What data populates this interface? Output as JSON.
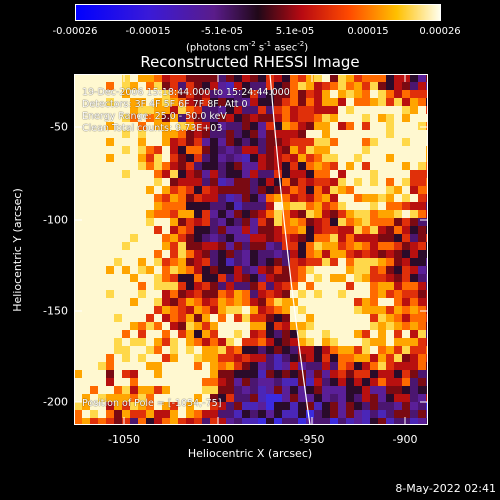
{
  "colorbar": {
    "ticks": [
      "-0.00026",
      "-0.00015",
      "-5.1e-05",
      "5.1e-05",
      "0.00015",
      "0.00026"
    ],
    "units_prefix": "(photons cm",
    "units_exp1": "-2",
    "units_mid": " s",
    "units_exp2": "-1",
    "units_suffix": " asec",
    "units_exp3": "-2",
    "units_end": ")"
  },
  "chart_data": {
    "type": "heatmap",
    "title": "Reconstructed RHESSI Image",
    "xlabel": "Heliocentric X (arcsec)",
    "ylabel": "Heliocentric Y (arcsec)",
    "xticks": [
      "-1050",
      "-1000",
      "-950",
      "-900"
    ],
    "yticks": [
      "-50",
      "-100",
      "-150",
      "-200"
    ],
    "xlim": [
      -1080,
      -890
    ],
    "ylim": [
      -210,
      -25
    ],
    "colormap": "blue-purple-red-yellow-white",
    "info_lines": [
      "19-Dec-2006 15:18:44.000 to 15:24:44.000",
      "Detectors: 3F 4F 5F 6F 7F 8F, Att 0",
      "Energy Range: 25.0 - 50.0 keV",
      "Clean      Total counts: 9.73E+03"
    ],
    "pointing_label": "Position of Pole = [-1054,-75]"
  },
  "timestamp": "8-May-2022 02:41"
}
